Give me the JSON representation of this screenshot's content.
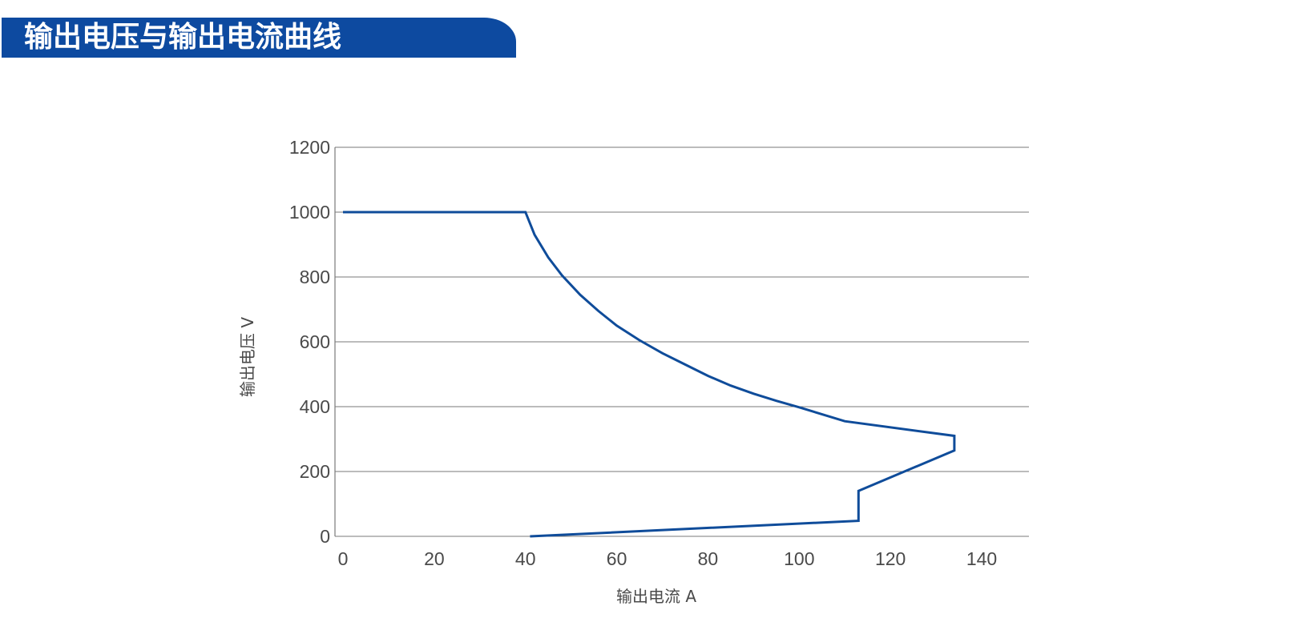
{
  "page": {
    "title": "输出电压与输出电流曲线"
  },
  "colors": {
    "banner": "#0d4aa0",
    "curve": "#0f4c9a",
    "grid": "#7a7a7a",
    "text": "#4a4a4a"
  },
  "chart_data": {
    "type": "line",
    "title": "",
    "xlabel": "输出电流 A",
    "ylabel": "输出电压 V",
    "xlim": [
      0,
      150
    ],
    "ylim": [
      0,
      1200
    ],
    "x_ticks": [
      0,
      20,
      40,
      60,
      80,
      100,
      120,
      140
    ],
    "y_ticks": [
      0,
      200,
      400,
      600,
      800,
      1000,
      1200
    ],
    "x_tick_labels": [
      "0",
      "20",
      "40",
      "60",
      "80",
      "100",
      "120",
      "140"
    ],
    "y_tick_labels": [
      "0",
      "200",
      "400",
      "600",
      "800",
      "1000",
      "1200"
    ],
    "grid": "horizontal",
    "series": [
      {
        "x": [
          0,
          40,
          42,
          45,
          48,
          52,
          56,
          60,
          65,
          70,
          75,
          80,
          85,
          90,
          95,
          100,
          110,
          134,
          134,
          113,
          113,
          41
        ],
        "y": [
          1000,
          1000,
          930,
          860,
          805,
          745,
          695,
          650,
          605,
          565,
          530,
          495,
          465,
          440,
          418,
          398,
          355,
          310,
          265,
          140,
          48,
          0
        ]
      }
    ]
  }
}
